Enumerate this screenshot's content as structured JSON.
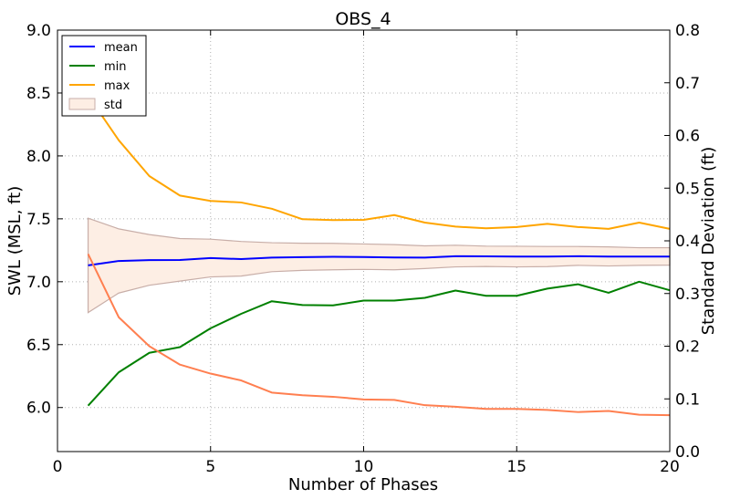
{
  "chart_data": {
    "type": "line",
    "title": "OBS_4",
    "xlabel": "Number of Phases",
    "ylabel": "SWL (MSL, ft)",
    "ylabel_right": "Standard Deviation (ft)",
    "xlim": [
      0,
      20
    ],
    "ylim": [
      5.65,
      9.0
    ],
    "ylim_right": [
      0.0,
      0.8
    ],
    "xticks": [
      "0",
      "5",
      "10",
      "15",
      "20"
    ],
    "yticks": [
      "6.0",
      "6.5",
      "7.0",
      "7.5",
      "8.0",
      "8.5",
      "9.0"
    ],
    "yticks_right": [
      "0.0",
      "0.1",
      "0.2",
      "0.3",
      "0.4",
      "0.5",
      "0.6",
      "0.7",
      "0.8"
    ],
    "grid": true,
    "legend_position": "top-left",
    "x": [
      1,
      2,
      3,
      4,
      5,
      6,
      7,
      8,
      9,
      10,
      11,
      12,
      13,
      14,
      15,
      16,
      17,
      18,
      19,
      20
    ],
    "series": [
      {
        "name": "mean",
        "color": "#0000ff",
        "axis": "left",
        "values": [
          7.13,
          7.165,
          7.172,
          7.173,
          7.188,
          7.18,
          7.192,
          7.195,
          7.198,
          7.196,
          7.193,
          7.192,
          7.203,
          7.202,
          7.2,
          7.2,
          7.203,
          7.2,
          7.2,
          7.2
        ]
      },
      {
        "name": "min",
        "color": "#008000",
        "axis": "left",
        "values": [
          6.015,
          6.28,
          6.435,
          6.48,
          6.63,
          6.745,
          6.845,
          6.815,
          6.812,
          6.85,
          6.85,
          6.872,
          6.93,
          6.888,
          6.888,
          6.945,
          6.98,
          6.912,
          7.0,
          6.932
        ]
      },
      {
        "name": "max",
        "color": "#ffa500",
        "axis": "left",
        "values": [
          8.48,
          8.125,
          7.84,
          7.685,
          7.642,
          7.63,
          7.58,
          7.497,
          7.49,
          7.492,
          7.53,
          7.47,
          7.438,
          7.425,
          7.435,
          7.46,
          7.435,
          7.42,
          7.47,
          7.42
        ]
      },
      {
        "name": "",
        "color": "#ff7f50",
        "axis": "right",
        "values": [
          0.375,
          0.255,
          0.2,
          0.165,
          0.148,
          0.135,
          0.112,
          0.107,
          0.104,
          0.099,
          0.098,
          0.088,
          0.085,
          0.081,
          0.081,
          0.079,
          0.075,
          0.077,
          0.07,
          0.069
        ]
      }
    ],
    "band": {
      "name": "std",
      "fill": "#fdeee4",
      "edge": "#c8aea8",
      "axis": "left",
      "lower": [
        6.755,
        6.91,
        6.972,
        7.005,
        7.038,
        7.045,
        7.08,
        7.09,
        7.095,
        7.098,
        7.095,
        7.105,
        7.118,
        7.121,
        7.118,
        7.12,
        7.13,
        7.125,
        7.13,
        7.132
      ],
      "upper": [
        7.505,
        7.42,
        7.375,
        7.343,
        7.338,
        7.32,
        7.31,
        7.306,
        7.305,
        7.3,
        7.295,
        7.285,
        7.29,
        7.283,
        7.282,
        7.28,
        7.28,
        7.277,
        7.27,
        7.27
      ]
    }
  }
}
